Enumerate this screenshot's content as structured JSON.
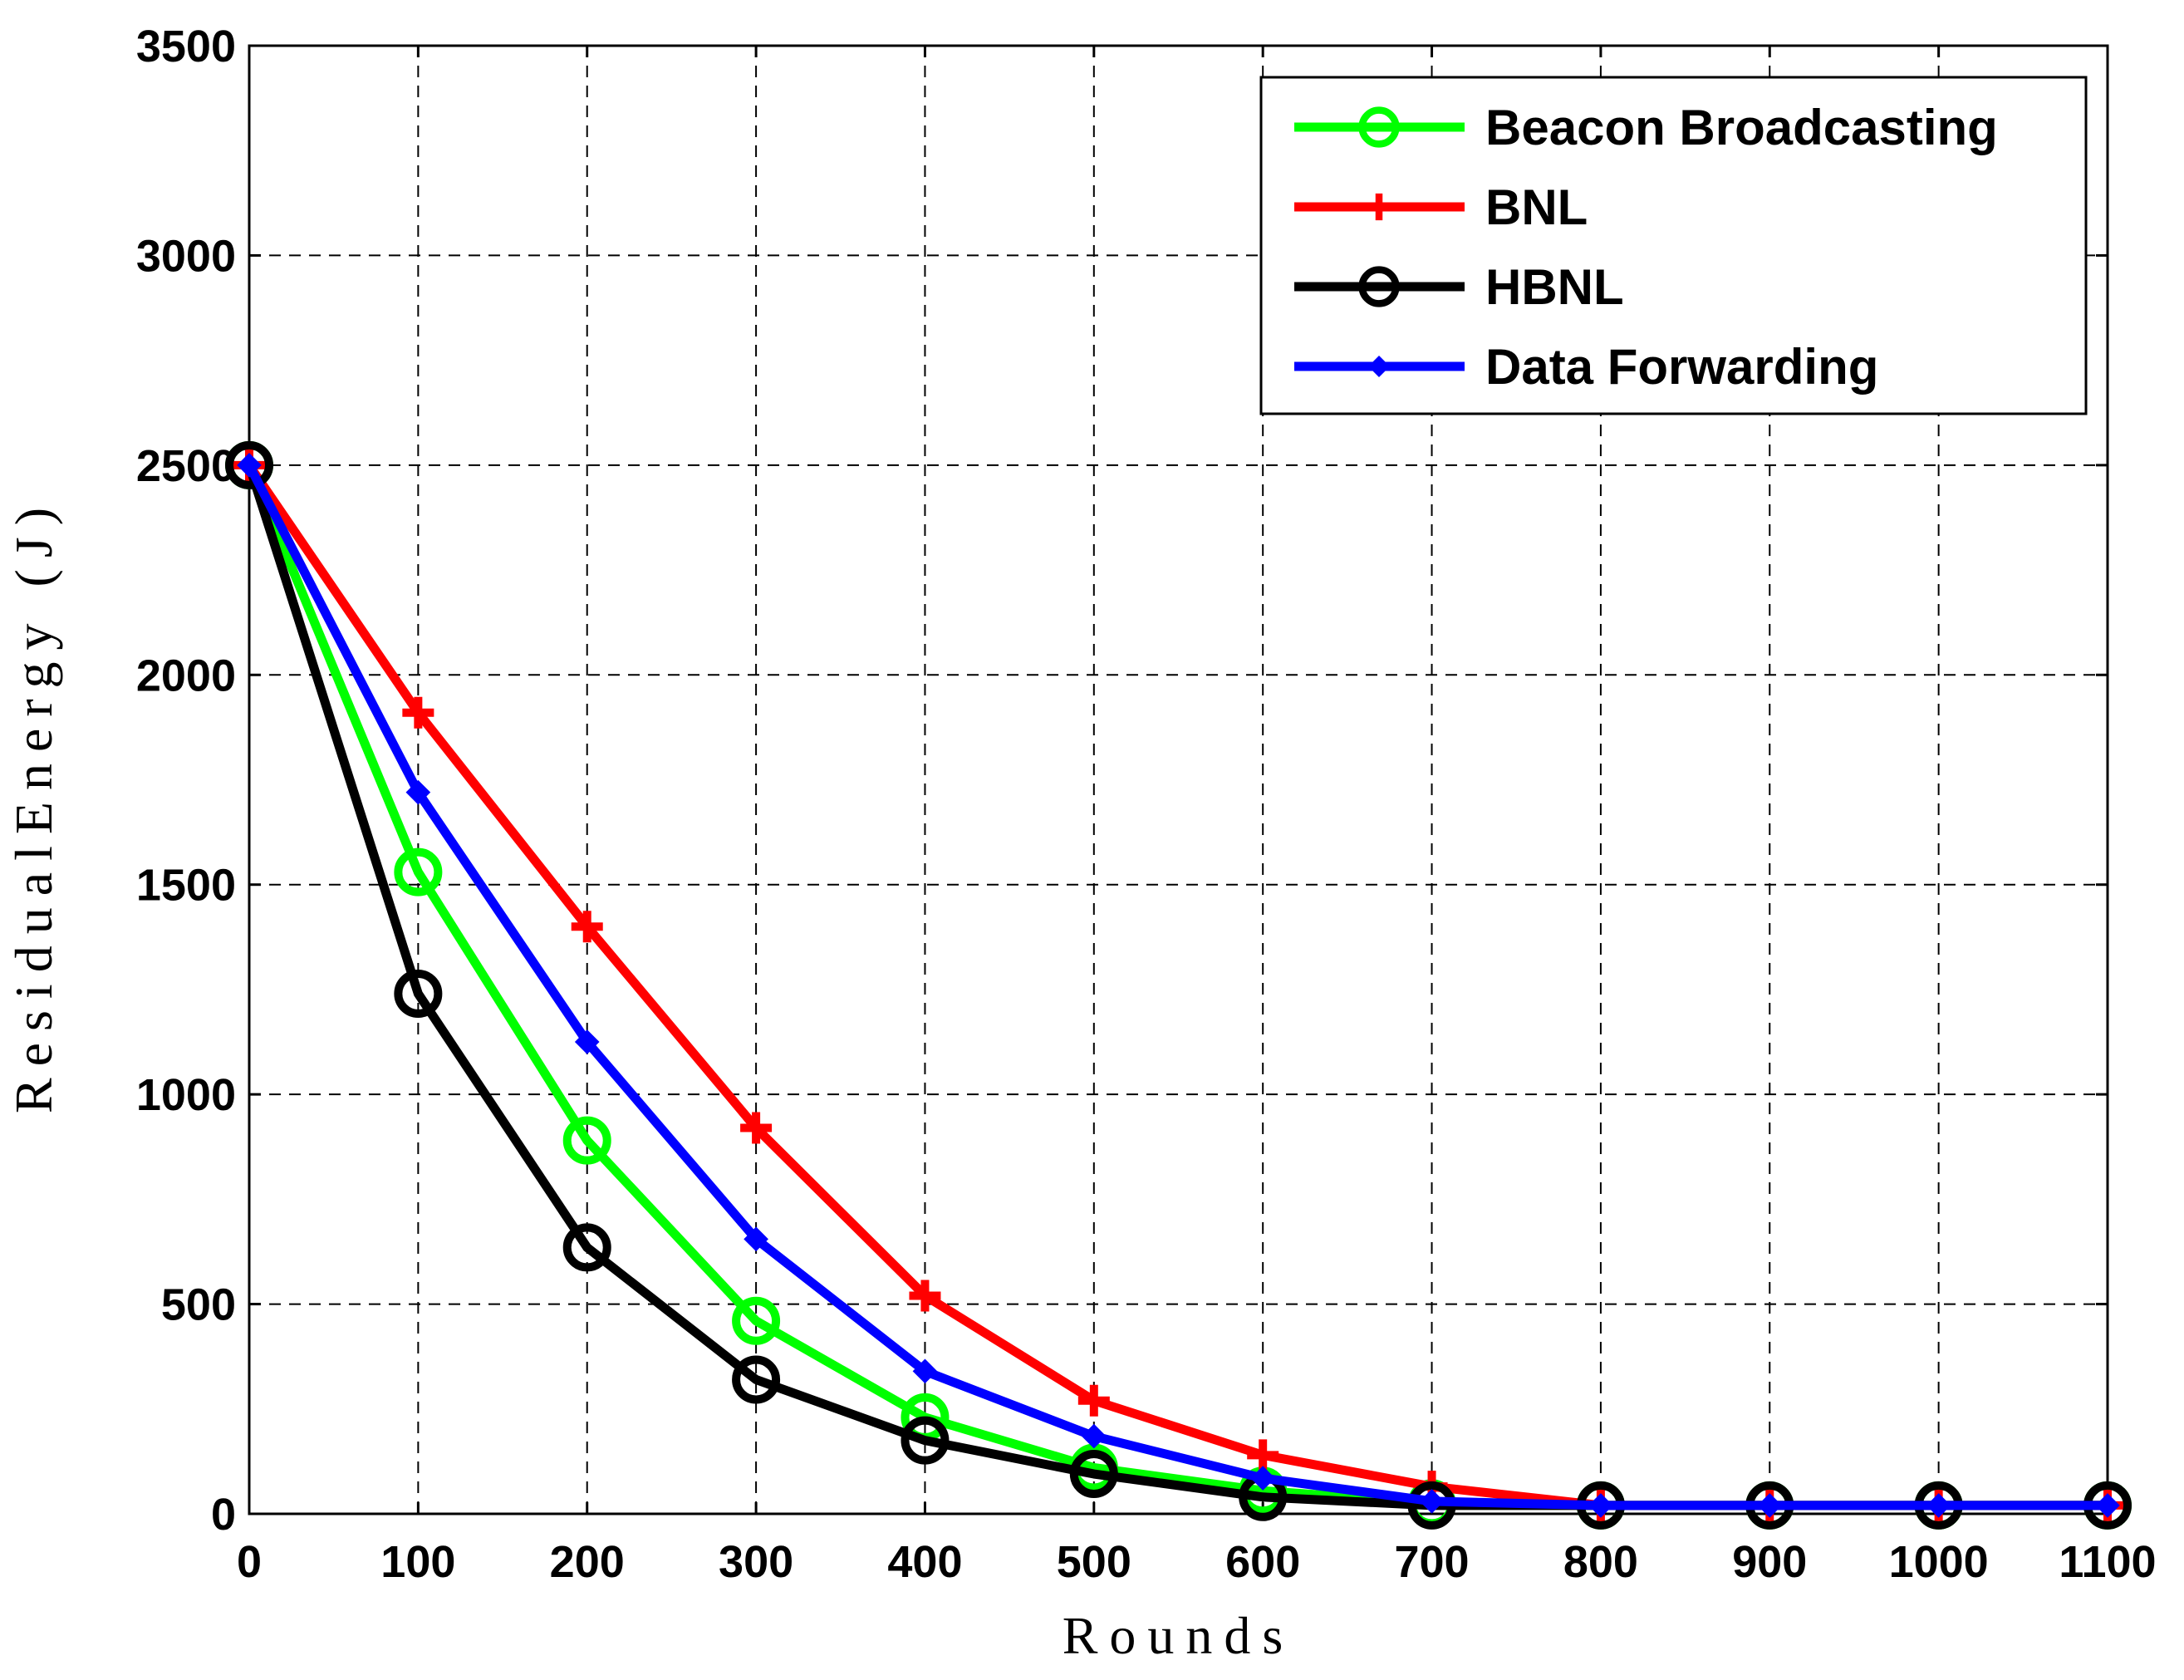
{
  "chart_data": {
    "type": "line",
    "title": "",
    "xlabel": "Rounds",
    "ylabel": "ResidualEnergy (J)",
    "xlim": [
      0,
      1100
    ],
    "ylim": [
      0,
      3500
    ],
    "xticks": [
      0,
      100,
      200,
      300,
      400,
      500,
      600,
      700,
      800,
      900,
      1000,
      1100
    ],
    "yticks": [
      0,
      500,
      1000,
      1500,
      2000,
      2500,
      3000,
      3500
    ],
    "grid": true,
    "legend_position": "top-right",
    "x": [
      0,
      100,
      200,
      300,
      400,
      500,
      600,
      700,
      800,
      900,
      1000,
      1100
    ],
    "series": [
      {
        "name": "Beacon Broadcasting",
        "color": "#00ff00",
        "marker": "circle",
        "values": [
          2500,
          1530,
          890,
          460,
          230,
          110,
          55,
          25,
          20,
          20,
          20,
          20
        ]
      },
      {
        "name": "BNL",
        "color": "#ff0000",
        "marker": "plus",
        "values": [
          2500,
          1910,
          1400,
          920,
          520,
          270,
          140,
          65,
          20,
          20,
          20,
          20
        ]
      },
      {
        "name": "HBNL",
        "color": "#000000",
        "marker": "circle",
        "values": [
          2500,
          1240,
          635,
          320,
          175,
          95,
          40,
          20,
          20,
          20,
          20,
          20
        ]
      },
      {
        "name": "Data Forwarding",
        "color": "#0000ff",
        "marker": "diamond",
        "values": [
          2500,
          1720,
          1125,
          655,
          340,
          185,
          85,
          30,
          20,
          20,
          20,
          20
        ]
      }
    ]
  }
}
